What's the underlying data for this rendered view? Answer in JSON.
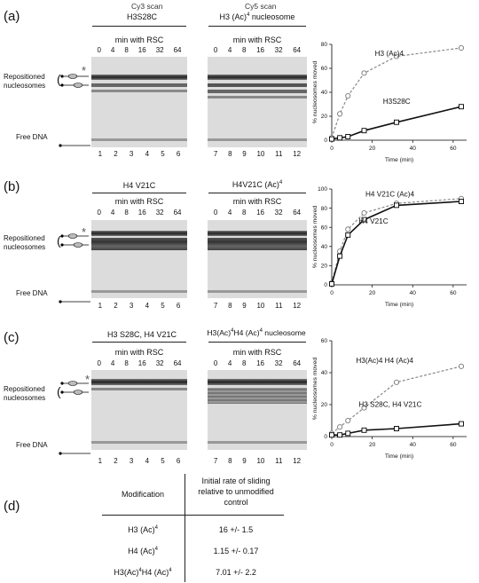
{
  "scans": {
    "left": "Cy3 scan",
    "right": "Cy5 scan"
  },
  "panels": [
    {
      "label": "(a)",
      "left_title": "H3S28C",
      "right_title": "H3 (Ac)4 nucleosome",
      "min_label": "min with RSC",
      "times": [
        "0",
        "4",
        "8",
        "16",
        "32",
        "64"
      ],
      "lanes_left": [
        "1",
        "2",
        "3",
        "4",
        "5",
        "6"
      ],
      "lanes_right": [
        "7",
        "8",
        "9",
        "10",
        "11",
        "12"
      ],
      "repositioned": "Repositioned nucleosomes",
      "free_dna": "Free DNA",
      "asterisk": "*"
    },
    {
      "label": "(b)",
      "left_title": "H4 V21C",
      "right_title": "H4V21C (Ac)4",
      "min_label": "min with RSC",
      "times": [
        "0",
        "4",
        "8",
        "16",
        "32",
        "64"
      ],
      "lanes_left": [
        "1",
        "2",
        "3",
        "4",
        "5",
        "6"
      ],
      "lanes_right": [
        "7",
        "8",
        "9",
        "10",
        "11",
        "12"
      ],
      "repositioned": "Repositioned nucleosomes",
      "free_dna": "Free DNA",
      "asterisk": "*"
    },
    {
      "label": "(c)",
      "left_title": "H3 S28C, H4 V21C",
      "right_title": "H3(Ac)4 H4 (Ac)4 nucleosome",
      "min_label": "min with RSC",
      "times": [
        "0",
        "4",
        "8",
        "16",
        "32",
        "64"
      ],
      "lanes_left": [
        "1",
        "2",
        "3",
        "4",
        "5",
        "6"
      ],
      "lanes_right": [
        "7",
        "8",
        "9",
        "10",
        "11",
        "12"
      ],
      "repositioned": "Repositioned nucleosomes",
      "free_dna": "Free DNA",
      "asterisk": "*"
    }
  ],
  "chart_data": [
    {
      "type": "line",
      "xlabel": "Time (min)",
      "ylabel": "% nucleosomes moved",
      "xlim": [
        0,
        64
      ],
      "ylim": [
        0,
        80
      ],
      "xticks": [
        "0",
        "20",
        "40",
        "60"
      ],
      "yticks": [
        "0",
        "20",
        "40",
        "60",
        "80"
      ],
      "series": [
        {
          "name": "H3 (Ac)4",
          "marker": "circle",
          "line": "dashed",
          "color": "#888888",
          "x": [
            0,
            4,
            8,
            16,
            32,
            64
          ],
          "y": [
            2,
            22,
            37,
            56,
            70,
            77
          ]
        },
        {
          "name": "H3S28C",
          "marker": "square",
          "line": "solid",
          "color": "#111111",
          "x": [
            0,
            4,
            8,
            16,
            32,
            64
          ],
          "y": [
            1,
            2,
            3,
            8,
            15,
            28
          ]
        }
      ]
    },
    {
      "type": "line",
      "xlabel": "Time (min)",
      "ylabel": "% nucleosomes moved",
      "xlim": [
        0,
        64
      ],
      "ylim": [
        0,
        100
      ],
      "xticks": [
        "0",
        "20",
        "40",
        "60"
      ],
      "yticks": [
        "0",
        "20",
        "40",
        "60",
        "80",
        "100"
      ],
      "series": [
        {
          "name": "H4 V21C (Ac)4",
          "marker": "circle",
          "line": "dashed",
          "color": "#888888",
          "x": [
            0,
            4,
            8,
            16,
            32,
            64
          ],
          "y": [
            2,
            35,
            58,
            75,
            85,
            90
          ]
        },
        {
          "name": "H4 V21C",
          "marker": "square",
          "line": "solid",
          "color": "#111111",
          "x": [
            0,
            4,
            8,
            16,
            32,
            64
          ],
          "y": [
            1,
            30,
            52,
            68,
            83,
            87
          ]
        }
      ]
    },
    {
      "type": "line",
      "xlabel": "Time (min)",
      "ylabel": "% nucleosomes moved",
      "xlim": [
        0,
        64
      ],
      "ylim": [
        0,
        60
      ],
      "xticks": [
        "0",
        "20",
        "40",
        "60"
      ],
      "yticks": [
        "0",
        "20",
        "40",
        "60"
      ],
      "series": [
        {
          "name": "H3(Ac)4 H4 (Ac)4",
          "marker": "circle",
          "line": "dashed",
          "color": "#888888",
          "x": [
            0,
            4,
            8,
            16,
            32,
            64
          ],
          "y": [
            2,
            6,
            10,
            18,
            34,
            44
          ]
        },
        {
          "name": "H3 S28C, H4 V21C",
          "marker": "square",
          "line": "solid",
          "color": "#111111",
          "x": [
            0,
            4,
            8,
            16,
            32,
            64
          ],
          "y": [
            1,
            1,
            2,
            4,
            5,
            8
          ]
        }
      ]
    }
  ],
  "table": {
    "label": "(d)",
    "headers": [
      "Modification",
      "Initial rate of sliding relative to unmodified control"
    ],
    "rows": [
      [
        "H3 (Ac)4",
        "16 +/- 1.5"
      ],
      [
        "H4 (Ac)4",
        "1.15 +/- 0.17"
      ],
      [
        "H3(Ac)4H4 (Ac)4",
        "7.01 +/- 2.2"
      ]
    ]
  }
}
